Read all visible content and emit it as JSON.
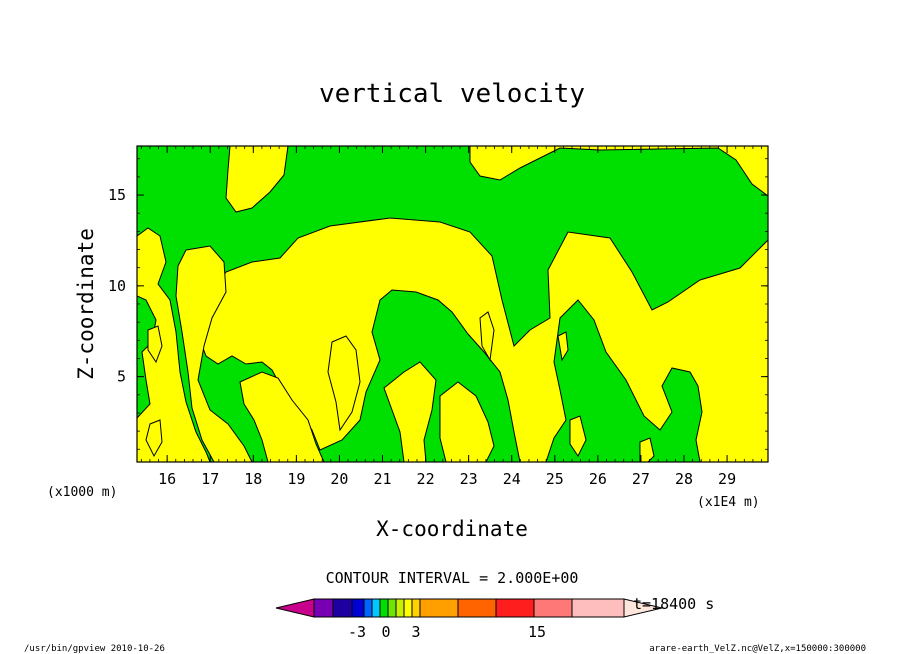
{
  "chart_data": {
    "type": "heatmap",
    "title": "vertical velocity",
    "xlabel": "X-coordinate",
    "ylabel": "Z-coordinate",
    "x_unit_left": "(x1000 m)",
    "x_unit_right": "(x1E4 m)",
    "xlim": [
      15.3,
      29.95
    ],
    "ylim": [
      0.3,
      17.7
    ],
    "x_ticks": [
      "16",
      "17",
      "18",
      "19",
      "20",
      "21",
      "22",
      "23",
      "24",
      "25",
      "26",
      "27",
      "28",
      "29"
    ],
    "y_ticks": [
      "5",
      "10",
      "15"
    ],
    "contour_interval_label": "CONTOUR INTERVAL = 2.000E+00",
    "time_label": "t=18400 s",
    "colorbar_labels": [
      "-3",
      "0",
      "3",
      "15"
    ],
    "fill_colors": {
      "positive": "#ffff00",
      "negative": "#00e000"
    },
    "colorbar_colors": [
      "#c8008c",
      "#7800b4",
      "#1e00a0",
      "#0000d2",
      "#0064ff",
      "#00c8ff",
      "#00e000",
      "#6ee600",
      "#c8f000",
      "#ffff00",
      "#ffd200",
      "#ffa000",
      "#ff6400",
      "#ff1e1e",
      "#ff7878",
      "#ffbebe",
      "#ffe6dc"
    ]
  },
  "footer": {
    "left": "/usr/bin/gpview  2010-10-26",
    "right": "arare-earth_VelZ.nc@VelZ,x=150000:300000"
  }
}
